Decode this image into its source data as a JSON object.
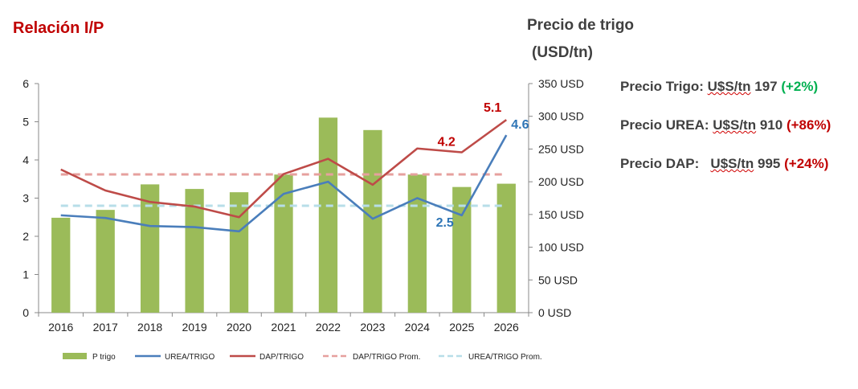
{
  "header": {
    "title": "Relación I/P",
    "right_axis_title": "Precio de trigo",
    "right_axis_unit": "(USD/tn)"
  },
  "prices": [
    {
      "label": "Precio Trigo:",
      "value_prefix": "U$S/tn",
      "value": "197",
      "change": "(+2%)",
      "change_color": "#00b050"
    },
    {
      "label": "Precio UREA:",
      "value_prefix": "U$S/tn",
      "value": "910",
      "change": "(+86%)",
      "change_color": "#c00000"
    },
    {
      "label": "Precio DAP:",
      "value_prefix": "U$S/tn",
      "value": "995",
      "change": "(+24%)",
      "change_color": "#c00000"
    }
  ],
  "colors": {
    "bar": "#9bbb59",
    "urea": "#4a7ebb",
    "dap": "#be4b48",
    "dap_avg": "#e6a09e",
    "urea_avg": "#b7dee8"
  },
  "chart_data": {
    "type": "bar",
    "categories": [
      "2016",
      "2017",
      "2018",
      "2019",
      "2020",
      "2021",
      "2022",
      "2023",
      "2024",
      "2025",
      "2026"
    ],
    "left_axis": {
      "ylim": [
        0,
        6
      ],
      "ticks": [
        "0",
        "1",
        "2",
        "3",
        "4",
        "5",
        "6"
      ]
    },
    "right_axis": {
      "ylim": [
        0,
        350
      ],
      "ticks": [
        "0 USD",
        "50 USD",
        "100 USD",
        "150 USD",
        "200 USD",
        "250 USD",
        "300 USD",
        "350 USD"
      ]
    },
    "series": [
      {
        "name": "P trigo",
        "kind": "bar",
        "axis": "right",
        "values": [
          145,
          157,
          196,
          189,
          184,
          211,
          298,
          279,
          211,
          192,
          197
        ]
      },
      {
        "name": "UREA/TRIGO",
        "kind": "line",
        "axis": "left",
        "values": [
          2.55,
          2.48,
          2.27,
          2.24,
          2.13,
          3.11,
          3.43,
          2.46,
          3.0,
          2.55,
          4.65
        ]
      },
      {
        "name": "DAP/TRIGO",
        "kind": "line",
        "axis": "left",
        "values": [
          3.75,
          3.2,
          2.9,
          2.78,
          2.5,
          3.63,
          4.03,
          3.35,
          4.3,
          4.2,
          5.05
        ]
      },
      {
        "name": "DAP/TRIGO Prom.",
        "kind": "dashed",
        "axis": "left",
        "values": [
          3.62,
          3.62,
          3.62,
          3.62,
          3.62,
          3.62,
          3.62,
          3.62,
          3.62,
          3.62,
          3.62
        ]
      },
      {
        "name": "UREA/TRIGO Prom.",
        "kind": "dashed",
        "axis": "left",
        "values": [
          2.8,
          2.8,
          2.8,
          2.8,
          2.8,
          2.8,
          2.8,
          2.8,
          2.8,
          2.8,
          2.8
        ]
      }
    ],
    "annotations": [
      {
        "text": "5.1",
        "series": "DAP/TRIGO",
        "index": 10,
        "color": "#c00000"
      },
      {
        "text": "4.6",
        "series": "UREA/TRIGO",
        "index": 10,
        "color": "#2e75b6"
      },
      {
        "text": "4.2",
        "series": "DAP/TRIGO",
        "index": 9,
        "color": "#c00000"
      },
      {
        "text": "2.5",
        "series": "UREA/TRIGO",
        "index": 9,
        "color": "#2e75b6"
      }
    ],
    "legend_position": "bottom"
  }
}
